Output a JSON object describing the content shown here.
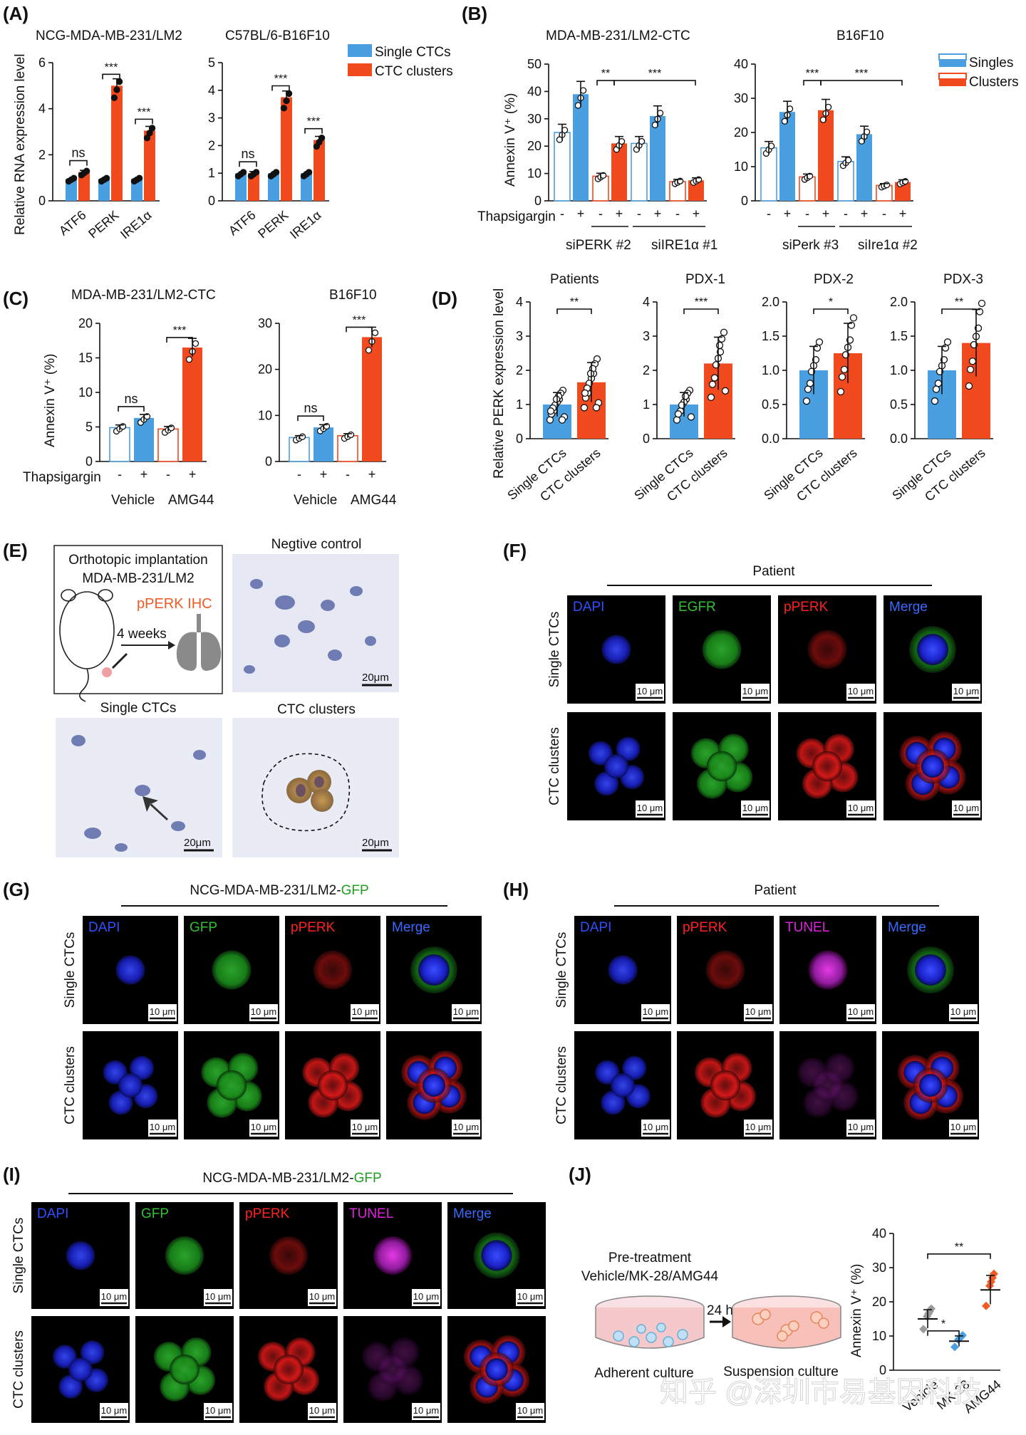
{
  "panel_letters": [
    "(A)",
    "(B)",
    "(C)",
    "(D)",
    "(E)",
    "(F)",
    "(G)",
    "(H)",
    "(I)",
    "(J)"
  ],
  "colors": {
    "single": "#4a9fe0",
    "cluster": "#f04a1e",
    "single_light": "#ffffff",
    "ihc_bg": "#e6e9f4",
    "micro_bg": "#000000"
  },
  "common": {
    "relative_rna": "Relative RNA expression level",
    "annexin": "Annexin V⁺ (%)",
    "relative_perk": "Relative PERK expression level",
    "thapsigargin": "Thapsigargin",
    "minus": "-",
    "plus": "+",
    "legend_single": "Single CTCs",
    "legend_cluster": "CTC clusters",
    "legend_singles": "Singles",
    "legend_clusters": "Clusters",
    "scale": "10 μm",
    "scale20": "20μm"
  },
  "chart_data": [
    {
      "id": "A1",
      "type": "bar",
      "title": "NCG-MDA-MB-231/LM2",
      "ylabel": "Relative RNA expression level",
      "ylim": [
        0,
        6
      ],
      "ticks": [
        0,
        2,
        4,
        6
      ],
      "categories": [
        "ATF6",
        "PERK",
        "IRE1α"
      ],
      "series": [
        {
          "name": "Single CTCs",
          "values": [
            0.95,
            0.95,
            0.95
          ]
        },
        {
          "name": "CTC clusters",
          "values": [
            1.25,
            5.0,
            3.05
          ]
        }
      ],
      "sig": [
        "ns",
        "***",
        "***"
      ]
    },
    {
      "id": "A2",
      "type": "bar",
      "title": "C57BL/6-B16F10",
      "ylim": [
        0,
        5
      ],
      "ticks": [
        0,
        1,
        2,
        3,
        4,
        5
      ],
      "categories": [
        "ATF6",
        "PERK",
        "IRE1α"
      ],
      "series": [
        {
          "name": "Single CTCs",
          "values": [
            1.0,
            1.0,
            1.0
          ]
        },
        {
          "name": "CTC clusters",
          "values": [
            1.0,
            3.75,
            2.2
          ]
        }
      ],
      "sig": [
        "ns",
        "***",
        "***"
      ]
    },
    {
      "id": "B1",
      "type": "bar",
      "title": "MDA-MB-231/LM2-CTC",
      "ylabel": "Annexin V⁺ (%)",
      "ylim": [
        0,
        50
      ],
      "ticks": [
        0,
        10,
        20,
        30,
        40,
        50
      ],
      "values": [
        25,
        39,
        9,
        21,
        21,
        31,
        7,
        7.5
      ],
      "group_labels": [
        "siPERK #2",
        "siIRE1α #1"
      ],
      "sig": [
        "**",
        "***"
      ]
    },
    {
      "id": "B2",
      "type": "bar",
      "title": "B16F10",
      "ylim": [
        0,
        40
      ],
      "ticks": [
        0,
        10,
        20,
        30,
        40
      ],
      "values": [
        15.5,
        26,
        7,
        26.5,
        11.5,
        19.5,
        4.5,
        5.5
      ],
      "group_labels": [
        "siPerk #3",
        "siIre1α #2"
      ],
      "sig": [
        "***",
        "***"
      ]
    },
    {
      "id": "C1",
      "type": "bar",
      "title": "MDA-MB-231/LM2-CTC",
      "ylabel": "Annexin V⁺ (%)",
      "ylim": [
        0,
        20
      ],
      "ticks": [
        0,
        5,
        10,
        15,
        20
      ],
      "values": [
        4.9,
        6.3,
        4.7,
        16.5
      ],
      "group_labels": [
        "Vehicle",
        "AMG44"
      ],
      "sig": [
        "ns",
        "***"
      ]
    },
    {
      "id": "C2",
      "type": "bar",
      "title": "B16F10",
      "ylim": [
        0,
        30
      ],
      "ticks": [
        0,
        10,
        20,
        30
      ],
      "values": [
        5.2,
        7.4,
        5.6,
        27
      ],
      "group_labels": [
        "Vehicle",
        "AMG44"
      ],
      "sig": [
        "ns",
        "***"
      ]
    },
    {
      "id": "D1",
      "type": "bar",
      "title": "Patients",
      "ylabel": "Relative PERK expression level",
      "ylim": [
        0,
        4
      ],
      "ticks": [
        0,
        1,
        2,
        3,
        4
      ],
      "categories": [
        "Single CTCs",
        "CTC clusters"
      ],
      "values": [
        1.0,
        1.65
      ],
      "sig": "**"
    },
    {
      "id": "D2",
      "type": "bar",
      "title": "PDX-1",
      "ylim": [
        0,
        4
      ],
      "ticks": [
        0,
        1,
        2,
        3,
        4
      ],
      "categories": [
        "Single CTCs",
        "CTC clusters"
      ],
      "values": [
        1.0,
        2.2
      ],
      "sig": "***"
    },
    {
      "id": "D3",
      "type": "bar",
      "title": "PDX-2",
      "ylim": [
        0,
        2.0
      ],
      "ticks": [
        "0.0",
        "0.5",
        "1.0",
        "1.5",
        "2.0"
      ],
      "categories": [
        "Single CTCs",
        "CTC clusters"
      ],
      "values": [
        1.0,
        1.25
      ],
      "sig": "*"
    },
    {
      "id": "D4",
      "type": "bar",
      "title": "PDX-3",
      "ylim": [
        0,
        2.0
      ],
      "ticks": [
        "0.0",
        "0.5",
        "1.0",
        "1.5",
        "2.0"
      ],
      "categories": [
        "Single CTCs",
        "CTC clusters"
      ],
      "values": [
        1.0,
        1.4
      ],
      "sig": "**"
    },
    {
      "id": "J",
      "type": "scatter",
      "ylabel": "Annexin V⁺ (%)",
      "ylim": [
        0,
        40
      ],
      "ticks": [
        0,
        10,
        20,
        30,
        40
      ],
      "categories": [
        "Vehicle",
        "MK-28",
        "AMG44"
      ],
      "means": [
        15,
        8.5,
        23.5
      ],
      "sig": [
        "*",
        "**"
      ]
    }
  ],
  "E": {
    "box_line1": "Orthotopic implantation",
    "box_line2": "MDA-MB-231/LM2",
    "ihc": "pPERK IHC",
    "weeks": "4 weeks",
    "neg": "Negtive control",
    "single": "Single CTCs",
    "cluster": "CTC clusters"
  },
  "F": {
    "header": "Patient",
    "channels": [
      "DAPI",
      "EGFR",
      "pPERK",
      "Merge"
    ],
    "rows": [
      "Single CTCs",
      "CTC clusters"
    ]
  },
  "G": {
    "header_prefix": "NCG-MDA-MB-231/LM2-",
    "header_suffix": "GFP",
    "channels": [
      "DAPI",
      "GFP",
      "pPERK",
      "Merge"
    ],
    "rows": [
      "Single CTCs",
      "CTC clusters"
    ]
  },
  "H": {
    "header": "Patient",
    "channels": [
      "DAPI",
      "pPERK",
      "TUNEL",
      "Merge"
    ],
    "rows": [
      "Single CTCs",
      "CTC clusters"
    ]
  },
  "I": {
    "header_prefix": "NCG-MDA-MB-231/LM2-",
    "header_suffix": "GFP",
    "channels": [
      "DAPI",
      "GFP",
      "pPERK",
      "TUNEL",
      "Merge"
    ],
    "rows": [
      "Single CTCs",
      "CTC clusters"
    ]
  },
  "J": {
    "pre1": "Pre-treatment",
    "pre2": "Vehicle/MK-28/AMG44",
    "h24": "24 h",
    "adherent": "Adherent culture",
    "suspension": "Suspension culture"
  },
  "watermark": "知乎 @深圳市易基因科技"
}
